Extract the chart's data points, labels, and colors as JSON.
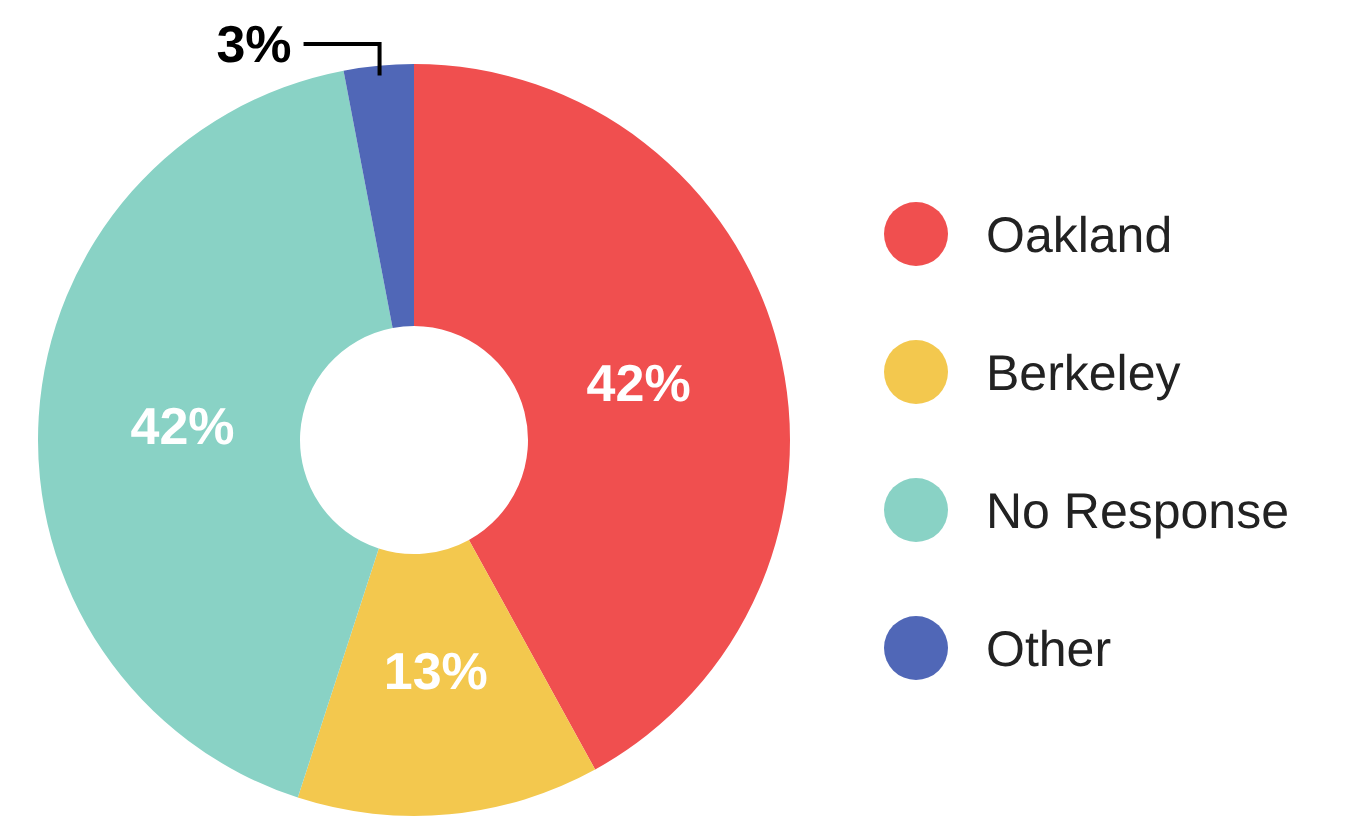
{
  "chart_data": {
    "type": "donut",
    "categories": [
      "Oakland",
      "Berkeley",
      "No Response",
      "Other"
    ],
    "values": [
      42,
      13,
      42,
      3
    ],
    "value_labels": [
      "42%",
      "13%",
      "42%",
      "3%"
    ],
    "colors": [
      "#f04f4f",
      "#f3c84e",
      "#89d2c5",
      "#5067b7"
    ],
    "legend": "right"
  }
}
